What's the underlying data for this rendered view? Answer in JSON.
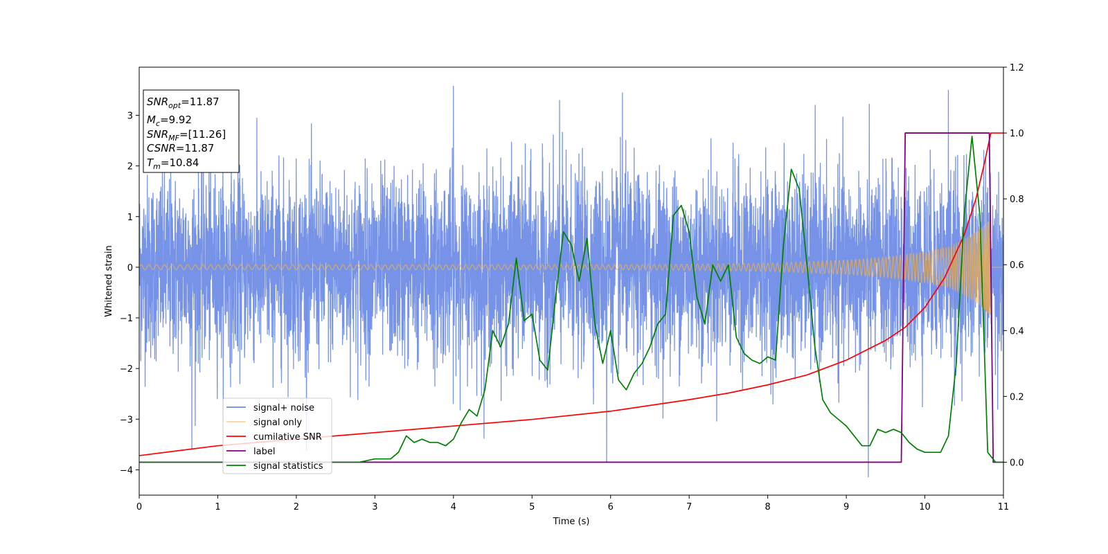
{
  "chart_data": {
    "type": "line",
    "title": "",
    "xlabel": "Time (s)",
    "ylabel": "Whitened strain",
    "xlim": [
      0,
      11
    ],
    "ylim": [
      -4.5,
      3.95
    ],
    "y2lim": [
      -0.1,
      1.2
    ],
    "xticks": [
      "0",
      "1",
      "2",
      "3",
      "4",
      "5",
      "6",
      "7",
      "8",
      "9",
      "10",
      "11"
    ],
    "yticks": [
      "3",
      "2",
      "1",
      "0",
      "−1",
      "−2",
      "−3",
      "−4"
    ],
    "y2ticks": [
      "0.0",
      "0.2",
      "0.4",
      "0.6",
      "0.8",
      "1.0",
      "1.2"
    ],
    "grid": false,
    "legend_position": "lower-left",
    "info_box": {
      "snr_opt": "=11.87",
      "mc": "=9.92",
      "snr_mf": "=[11.26]",
      "csnr": "=11.87",
      "tm": "=10.84"
    },
    "series": [
      {
        "name": "signal+ noise",
        "axis": "left",
        "color": "#6a8ae6",
        "description_stats": {
          "sigma": 0.9,
          "min": -4.15,
          "max": 3.58
        },
        "notable_peaks": [
          [
            4.0,
            3.58
          ],
          [
            5.35,
            3.3
          ],
          [
            6.15,
            3.45
          ],
          [
            10.3,
            3.5
          ],
          [
            9.28,
            -4.15
          ],
          [
            5.95,
            -3.85
          ],
          [
            0.67,
            -3.6
          ]
        ]
      },
      {
        "name": "signal only",
        "axis": "left",
        "color": "#f5b041",
        "amplitude_envelope": {
          "x": [
            0,
            2,
            4,
            6,
            7,
            8,
            9,
            9.5,
            10,
            10.3,
            10.5,
            10.7,
            10.8,
            10.84
          ],
          "y": [
            0.05,
            0.05,
            0.05,
            0.05,
            0.06,
            0.08,
            0.14,
            0.2,
            0.3,
            0.4,
            0.55,
            0.75,
            0.9,
            0.95
          ]
        }
      },
      {
        "name": "cumilative SNR",
        "axis": "right",
        "color": "#ff0000",
        "x": [
          0,
          1,
          2,
          3,
          4,
          5,
          6,
          7,
          7.5,
          8,
          8.5,
          9,
          9.5,
          9.75,
          10,
          10.25,
          10.5,
          10.65,
          10.75,
          10.84,
          11
        ],
        "y": [
          0.02,
          0.05,
          0.07,
          0.09,
          0.11,
          0.13,
          0.155,
          0.19,
          0.21,
          0.235,
          0.265,
          0.31,
          0.37,
          0.41,
          0.47,
          0.56,
          0.69,
          0.8,
          0.9,
          1.0,
          1.0
        ]
      },
      {
        "name": "label",
        "axis": "right",
        "color": "#800080",
        "x": [
          0,
          9.7,
          9.75,
          10.82,
          10.87,
          11
        ],
        "y": [
          0,
          0,
          1,
          1,
          0,
          0
        ]
      },
      {
        "name": "signal statistics",
        "axis": "right",
        "color": "#008000",
        "x": [
          0,
          1,
          2,
          2.8,
          3.0,
          3.2,
          3.3,
          3.4,
          3.5,
          3.6,
          3.7,
          3.8,
          3.9,
          4.0,
          4.1,
          4.2,
          4.3,
          4.4,
          4.5,
          4.6,
          4.7,
          4.8,
          4.9,
          5.0,
          5.1,
          5.2,
          5.3,
          5.4,
          5.5,
          5.6,
          5.7,
          5.8,
          5.9,
          6.0,
          6.1,
          6.2,
          6.3,
          6.4,
          6.5,
          6.6,
          6.7,
          6.8,
          6.9,
          7.0,
          7.1,
          7.2,
          7.3,
          7.4,
          7.5,
          7.6,
          7.7,
          7.8,
          7.9,
          8.0,
          8.1,
          8.2,
          8.3,
          8.4,
          8.5,
          8.6,
          8.7,
          8.8,
          8.9,
          9.0,
          9.1,
          9.2,
          9.3,
          9.4,
          9.5,
          9.6,
          9.7,
          9.8,
          9.9,
          10.0,
          10.1,
          10.2,
          10.3,
          10.4,
          10.5,
          10.6,
          10.7,
          10.8,
          10.9,
          11.0
        ],
        "y": [
          0,
          0,
          0,
          0,
          0.01,
          0.01,
          0.03,
          0.08,
          0.06,
          0.07,
          0.06,
          0.06,
          0.05,
          0.07,
          0.12,
          0.16,
          0.14,
          0.22,
          0.4,
          0.35,
          0.42,
          0.62,
          0.43,
          0.45,
          0.31,
          0.28,
          0.5,
          0.7,
          0.66,
          0.55,
          0.68,
          0.42,
          0.3,
          0.4,
          0.25,
          0.22,
          0.27,
          0.3,
          0.35,
          0.42,
          0.45,
          0.75,
          0.78,
          0.7,
          0.5,
          0.42,
          0.6,
          0.55,
          0.6,
          0.38,
          0.33,
          0.31,
          0.3,
          0.32,
          0.31,
          0.66,
          0.89,
          0.83,
          0.6,
          0.35,
          0.19,
          0.15,
          0.13,
          0.11,
          0.08,
          0.05,
          0.05,
          0.1,
          0.09,
          0.1,
          0.09,
          0.06,
          0.04,
          0.03,
          0.03,
          0.03,
          0.08,
          0.3,
          0.75,
          0.99,
          0.75,
          0.03,
          0,
          0
        ]
      }
    ]
  }
}
